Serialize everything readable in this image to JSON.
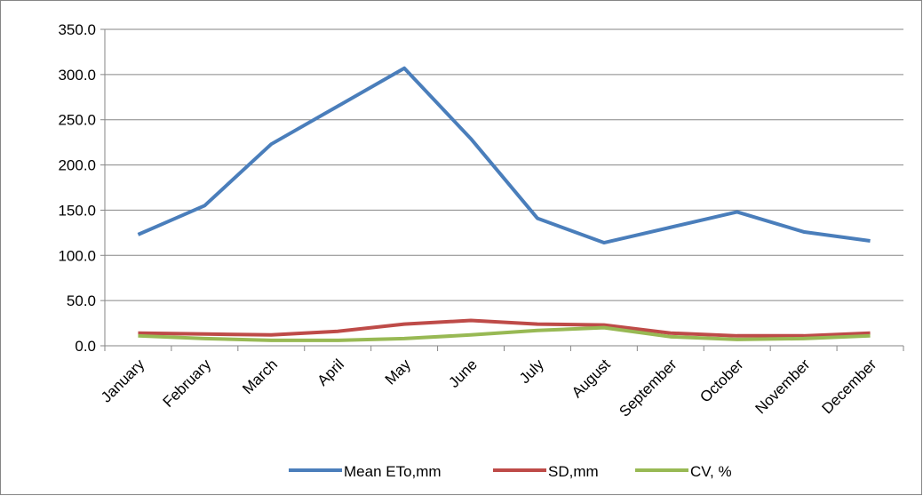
{
  "chart_data": {
    "type": "line",
    "categories": [
      "January",
      "February",
      "March",
      "April",
      "May",
      "June",
      "July",
      "August",
      "September",
      "October",
      "November",
      "December"
    ],
    "series": [
      {
        "name": "Mean ETo,mm",
        "color": "#4a7ebb",
        "values": [
          123,
          155,
          223,
          265,
          307,
          229,
          141,
          114,
          131,
          148,
          126,
          116
        ]
      },
      {
        "name": "SD,mm",
        "color": "#be4b48",
        "values": [
          14,
          13,
          12,
          16,
          24,
          28,
          24,
          23,
          14,
          11,
          11,
          14
        ]
      },
      {
        "name": "CV, %",
        "color": "#98b954",
        "values": [
          11,
          8,
          6,
          6,
          8,
          12,
          17,
          20,
          10,
          7,
          8,
          11
        ]
      }
    ],
    "ylim": [
      0,
      350
    ],
    "yticks": [
      {
        "value": 0,
        "label": "0.0"
      },
      {
        "value": 50,
        "label": "50.0"
      },
      {
        "value": 100,
        "label": "100.0"
      },
      {
        "value": 150,
        "label": "150.0"
      },
      {
        "value": 200,
        "label": "200.0"
      },
      {
        "value": 250,
        "label": "250.0"
      },
      {
        "value": 300,
        "label": "300.0"
      },
      {
        "value": 350,
        "label": "350.0"
      }
    ],
    "grid": true,
    "legend": "bottom"
  }
}
